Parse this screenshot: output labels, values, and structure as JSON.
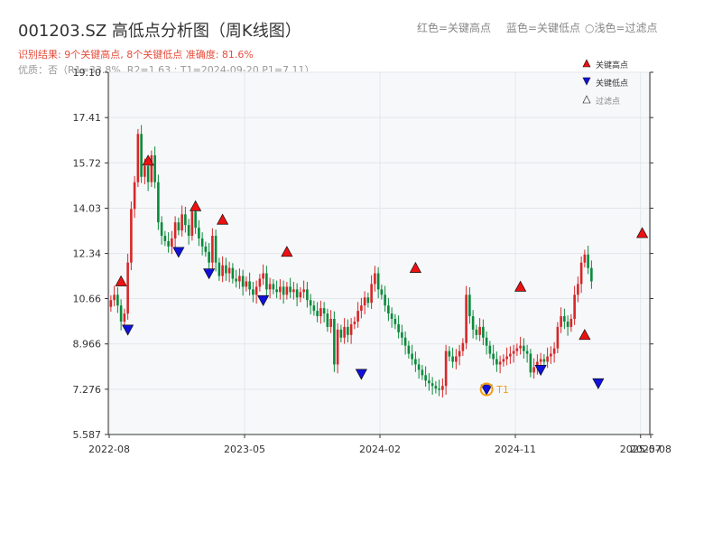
{
  "header": {
    "title": "001203.SZ 高低点分析图（周K线图）",
    "result": "识别结果: 9个关键高点, 8个关键低点  准确度: 81.6%",
    "quality": "优质：否（R1=33.8%, R2=1.63 ; T1=2024-09-20 P1=7.11）",
    "legend_red": "红色=关键高点",
    "legend_blue": "蓝色=关键低点",
    "legend_filtered": "○浅色=过滤点"
  },
  "colors": {
    "up": "#d62728",
    "down": "#0a8a3a",
    "high": "#ee1111",
    "low": "#1111dd",
    "t1": "#f39c12"
  },
  "chart_data": {
    "type": "candlestick",
    "title": "001203.SZ 高低点分析图（周K线图）",
    "y_ticks": [
      "19.10",
      "17.41",
      "15.72",
      "14.03",
      "12.34",
      "10.66",
      "8.966",
      "7.276",
      "5.587"
    ],
    "y_range": [
      5.587,
      19.1
    ],
    "x_ticks": [
      "2022-08",
      "2023-05",
      "2024-02",
      "2024-11",
      "2025-07",
      "2025-08"
    ],
    "x_range": [
      0,
      160
    ],
    "x_tick_index": [
      0,
      40,
      80,
      120,
      157,
      160
    ],
    "closes": [
      10.6,
      10.8,
      10.4,
      9.8,
      10.1,
      12.0,
      14.0,
      15.0,
      16.8,
      15.2,
      15.6,
      15.0,
      16.0,
      15.0,
      13.5,
      13.0,
      12.8,
      12.6,
      12.9,
      13.5,
      13.2,
      13.8,
      13.4,
      13.0,
      13.9,
      13.3,
      12.9,
      12.6,
      12.4,
      12.0,
      13.0,
      12.0,
      11.5,
      11.9,
      11.6,
      11.8,
      11.4,
      11.3,
      11.5,
      11.1,
      11.3,
      11.0,
      10.8,
      11.1,
      11.4,
      11.6,
      11.0,
      11.2,
      11.0,
      10.9,
      11.1,
      10.8,
      11.1,
      10.9,
      11.0,
      10.7,
      10.9,
      11.0,
      10.6,
      10.4,
      10.2,
      10.0,
      10.3,
      10.1,
      9.6,
      9.9,
      8.2,
      9.5,
      9.2,
      9.6,
      9.3,
      9.7,
      9.8,
      10.2,
      10.4,
      10.7,
      10.5,
      11.2,
      11.6,
      11.0,
      10.8,
      10.4,
      10.1,
      9.9,
      9.7,
      9.4,
      9.2,
      8.9,
      8.6,
      8.4,
      8.2,
      8.0,
      7.8,
      7.6,
      7.5,
      7.4,
      7.3,
      7.25,
      7.4,
      8.7,
      8.5,
      8.3,
      8.5,
      8.7,
      9.0,
      10.8,
      10.0,
      9.5,
      9.3,
      9.6,
      9.2,
      8.9,
      8.6,
      8.4,
      8.2,
      8.3,
      8.4,
      8.5,
      8.6,
      8.7,
      8.8,
      8.9,
      8.7,
      8.6,
      7.9,
      8.1,
      8.3,
      8.4,
      8.3,
      8.5,
      8.6,
      8.8,
      9.6,
      10.0,
      9.8,
      9.6,
      9.9,
      10.8,
      11.2,
      12.0,
      12.3,
      11.8,
      11.3
    ],
    "key_highs": [
      {
        "i": 3,
        "v": 11.3
      },
      {
        "i": 11,
        "v": 15.8
      },
      {
        "i": 25,
        "v": 14.1
      },
      {
        "i": 33,
        "v": 13.6
      },
      {
        "i": 52,
        "v": 12.4
      },
      {
        "i": 90,
        "v": 11.8
      },
      {
        "i": 121,
        "v": 11.1
      },
      {
        "i": 140,
        "v": 9.3
      },
      {
        "i": 157,
        "v": 13.1
      }
    ],
    "key_lows": [
      {
        "i": 5,
        "v": 9.5
      },
      {
        "i": 20,
        "v": 12.4
      },
      {
        "i": 29,
        "v": 11.6
      },
      {
        "i": 45,
        "v": 10.6
      },
      {
        "i": 74,
        "v": 7.85
      },
      {
        "i": 111,
        "v": 7.27
      },
      {
        "i": 127,
        "v": 8.0
      },
      {
        "i": 144,
        "v": 7.5
      }
    ],
    "t1": {
      "i": 111,
      "v": 7.27,
      "label": "T1"
    },
    "legend": [
      "关键高点",
      "关键低点",
      "过滤点"
    ],
    "grid": true,
    "legend_placement": "top-right"
  }
}
